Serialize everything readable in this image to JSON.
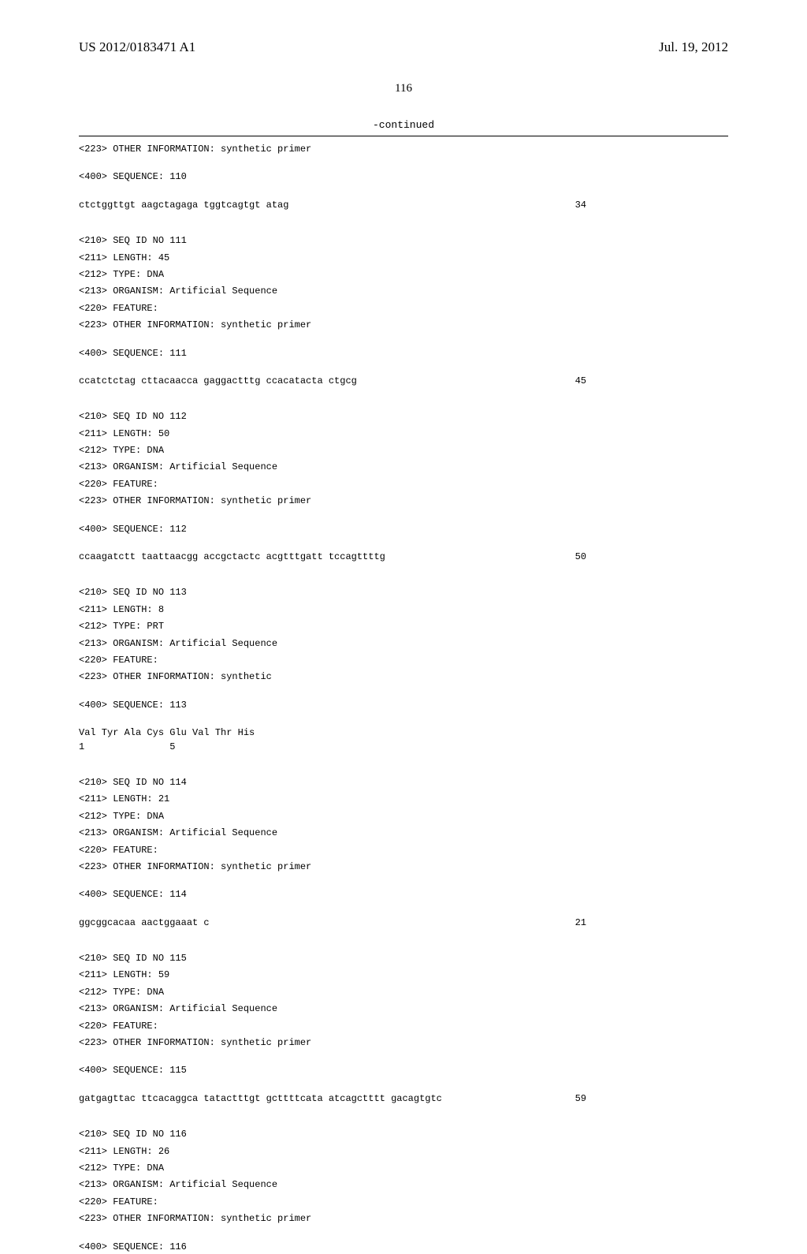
{
  "header": {
    "pub_number": "US 2012/0183471 A1",
    "pub_date": "Jul. 19, 2012"
  },
  "page_number": "116",
  "continued_label": "-continued",
  "entries": [
    {
      "pre_lines": [
        "<223> OTHER INFORMATION: synthetic primer"
      ],
      "sequence_header": "<400> SEQUENCE: 110",
      "sequence_lines": [
        {
          "text": "ctctggttgt aagctagaga tggtcagtgt atag",
          "num": "34"
        }
      ]
    },
    {
      "pre_lines": [
        "<210> SEQ ID NO 111",
        "<211> LENGTH: 45",
        "<212> TYPE: DNA",
        "<213> ORGANISM: Artificial Sequence",
        "<220> FEATURE:",
        "<223> OTHER INFORMATION: synthetic primer"
      ],
      "sequence_header": "<400> SEQUENCE: 111",
      "sequence_lines": [
        {
          "text": "ccatctctag cttacaacca gaggactttg ccacatacta ctgcg",
          "num": "45"
        }
      ]
    },
    {
      "pre_lines": [
        "<210> SEQ ID NO 112",
        "<211> LENGTH: 50",
        "<212> TYPE: DNA",
        "<213> ORGANISM: Artificial Sequence",
        "<220> FEATURE:",
        "<223> OTHER INFORMATION: synthetic primer"
      ],
      "sequence_header": "<400> SEQUENCE: 112",
      "sequence_lines": [
        {
          "text": "ccaagatctt taattaacgg accgctactc acgtttgatt tccagttttg",
          "num": "50"
        }
      ]
    },
    {
      "pre_lines": [
        "<210> SEQ ID NO 113",
        "<211> LENGTH: 8",
        "<212> TYPE: PRT",
        "<213> ORGANISM: Artificial Sequence",
        "<220> FEATURE:",
        "<223> OTHER INFORMATION: synthetic"
      ],
      "sequence_header": "<400> SEQUENCE: 113",
      "sequence_lines": [
        {
          "text": "Val Tyr Ala Cys Glu Val Thr His",
          "num": ""
        },
        {
          "text": "1               5",
          "num": ""
        }
      ]
    },
    {
      "pre_lines": [
        "<210> SEQ ID NO 114",
        "<211> LENGTH: 21",
        "<212> TYPE: DNA",
        "<213> ORGANISM: Artificial Sequence",
        "<220> FEATURE:",
        "<223> OTHER INFORMATION: synthetic primer"
      ],
      "sequence_header": "<400> SEQUENCE: 114",
      "sequence_lines": [
        {
          "text": "ggcggcacaa aactggaaat c",
          "num": "21"
        }
      ]
    },
    {
      "pre_lines": [
        "<210> SEQ ID NO 115",
        "<211> LENGTH: 59",
        "<212> TYPE: DNA",
        "<213> ORGANISM: Artificial Sequence",
        "<220> FEATURE:",
        "<223> OTHER INFORMATION: synthetic primer"
      ],
      "sequence_header": "<400> SEQUENCE: 115",
      "sequence_lines": [
        {
          "text": "gatgagttac ttcacaggca tatactttgt gcttttcata atcagctttt gacagtgtc",
          "num": "59"
        }
      ]
    },
    {
      "pre_lines": [
        "<210> SEQ ID NO 116",
        "<211> LENGTH: 26",
        "<212> TYPE: DNA",
        "<213> ORGANISM: Artificial Sequence",
        "<220> FEATURE:",
        "<223> OTHER INFORMATION: synthetic primer"
      ],
      "sequence_header": "<400> SEQUENCE: 116",
      "sequence_lines": []
    }
  ]
}
